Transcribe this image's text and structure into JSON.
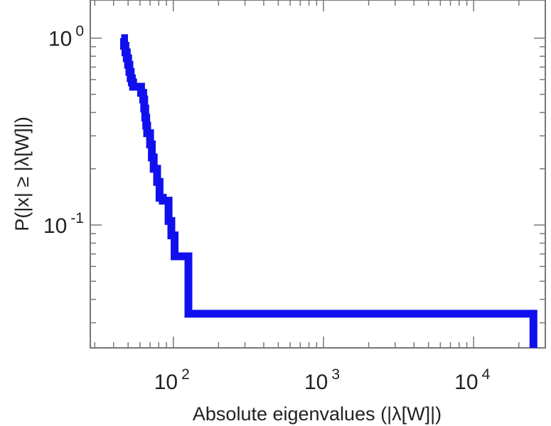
{
  "chart_data": {
    "type": "line",
    "style": "step-ccdf",
    "xlabel": "Absolute eigenvalues (|λ[W]|)",
    "ylabel": "P(|x| ≥ |λ[W]|)",
    "xscale": "log",
    "yscale": "log",
    "xlim": [
      28,
      30000
    ],
    "ylim": [
      0.022,
      1.6
    ],
    "grid": false,
    "legend": "none",
    "line_color": "#1010ee",
    "x_ticks": [
      {
        "base": "10",
        "exp": "2",
        "value": 100
      },
      {
        "base": "10",
        "exp": "3",
        "value": 1000
      },
      {
        "base": "10",
        "exp": "4",
        "value": 10000
      }
    ],
    "y_ticks": [
      {
        "base": "10",
        "exp": "0",
        "value": 1
      },
      {
        "base": "10",
        "exp": "-1",
        "value": 0.1
      }
    ],
    "series": [
      {
        "x": [
          45,
          47,
          48,
          49,
          50,
          51,
          52,
          53,
          54,
          58,
          61,
          63,
          64,
          65,
          66,
          67,
          70,
          72,
          74,
          78,
          81,
          85,
          93,
          97,
          102,
          126,
          25000
        ],
        "y": [
          1.0,
          0.91,
          0.84,
          0.78,
          0.72,
          0.66,
          0.61,
          0.58,
          0.55,
          0.55,
          0.51,
          0.47,
          0.42,
          0.375,
          0.34,
          0.31,
          0.27,
          0.23,
          0.2,
          0.17,
          0.14,
          0.135,
          0.105,
          0.088,
          0.068,
          0.0335,
          0.0335
        ]
      }
    ]
  }
}
